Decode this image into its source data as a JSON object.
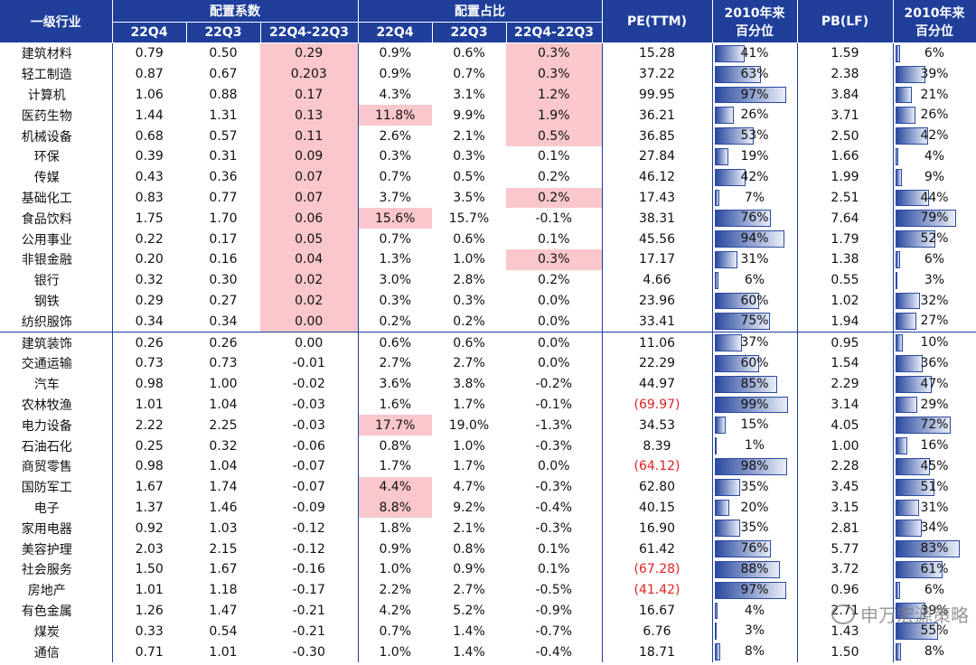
{
  "headers": {
    "industry": "一级行业",
    "group_coef": "配置系数",
    "group_ratio": "配置占比",
    "pe": "PE(TTM)",
    "pct_since_1": "2010年来",
    "pct_since_2": "百分位",
    "pb": "PB(LF)",
    "pct2_since_1": "2010年来",
    "pct2_since_2": "百分位",
    "c_q4": "22Q4",
    "c_q3": "22Q3",
    "c_diff": "22Q4-22Q3",
    "r_q4": "22Q4",
    "r_q3": "22Q3",
    "r_diff": "22Q4-22Q3"
  },
  "rows": [
    {
      "name": "建筑材料",
      "c4": "0.79",
      "c3": "0.50",
      "cd": "0.29",
      "r4": "0.9%",
      "r3": "0.6%",
      "rd": "0.3%",
      "pe": "15.28",
      "pep": "41%",
      "pepv": 0.41,
      "pb": "1.59",
      "pbp": "6%",
      "pbpv": 0.06,
      "hcd": true,
      "hr4": false,
      "hrd": true,
      "pered": false
    },
    {
      "name": "轻工制造",
      "c4": "0.87",
      "c3": "0.67",
      "cd": "0.203",
      "r4": "0.9%",
      "r3": "0.7%",
      "rd": "0.3%",
      "pe": "37.22",
      "pep": "63%",
      "pepv": 0.63,
      "pb": "2.38",
      "pbp": "39%",
      "pbpv": 0.39,
      "hcd": true,
      "hr4": false,
      "hrd": true,
      "pered": false
    },
    {
      "name": "计算机",
      "c4": "1.06",
      "c3": "0.88",
      "cd": "0.17",
      "r4": "4.3%",
      "r3": "3.1%",
      "rd": "1.2%",
      "pe": "99.95",
      "pep": "97%",
      "pepv": 0.97,
      "pb": "3.84",
      "pbp": "21%",
      "pbpv": 0.21,
      "hcd": true,
      "hr4": false,
      "hrd": true,
      "pered": false
    },
    {
      "name": "医药生物",
      "c4": "1.44",
      "c3": "1.31",
      "cd": "0.13",
      "r4": "11.8%",
      "r3": "9.9%",
      "rd": "1.9%",
      "pe": "36.21",
      "pep": "26%",
      "pepv": 0.26,
      "pb": "3.71",
      "pbp": "26%",
      "pbpv": 0.26,
      "hcd": true,
      "hr4": true,
      "hrd": true,
      "pered": false
    },
    {
      "name": "机械设备",
      "c4": "0.68",
      "c3": "0.57",
      "cd": "0.11",
      "r4": "2.6%",
      "r3": "2.1%",
      "rd": "0.5%",
      "pe": "36.85",
      "pep": "53%",
      "pepv": 0.53,
      "pb": "2.50",
      "pbp": "42%",
      "pbpv": 0.42,
      "hcd": true,
      "hr4": false,
      "hrd": true,
      "pered": false
    },
    {
      "name": "环保",
      "c4": "0.39",
      "c3": "0.31",
      "cd": "0.09",
      "r4": "0.3%",
      "r3": "0.3%",
      "rd": "0.1%",
      "pe": "27.84",
      "pep": "19%",
      "pepv": 0.19,
      "pb": "1.66",
      "pbp": "4%",
      "pbpv": 0.04,
      "hcd": true,
      "hr4": false,
      "hrd": false,
      "pered": false
    },
    {
      "name": "传媒",
      "c4": "0.43",
      "c3": "0.36",
      "cd": "0.07",
      "r4": "0.7%",
      "r3": "0.5%",
      "rd": "0.2%",
      "pe": "46.12",
      "pep": "42%",
      "pepv": 0.42,
      "pb": "1.99",
      "pbp": "9%",
      "pbpv": 0.09,
      "hcd": true,
      "hr4": false,
      "hrd": false,
      "pered": false
    },
    {
      "name": "基础化工",
      "c4": "0.83",
      "c3": "0.77",
      "cd": "0.07",
      "r4": "3.7%",
      "r3": "3.5%",
      "rd": "0.2%",
      "pe": "17.43",
      "pep": "7%",
      "pepv": 0.07,
      "pb": "2.51",
      "pbp": "44%",
      "pbpv": 0.44,
      "hcd": true,
      "hr4": false,
      "hrd": true,
      "pered": false
    },
    {
      "name": "食品饮料",
      "c4": "1.75",
      "c3": "1.70",
      "cd": "0.06",
      "r4": "15.6%",
      "r3": "15.7%",
      "rd": "-0.1%",
      "pe": "38.31",
      "pep": "76%",
      "pepv": 0.76,
      "pb": "7.64",
      "pbp": "79%",
      "pbpv": 0.79,
      "hcd": true,
      "hr4": true,
      "hrd": false,
      "pered": false
    },
    {
      "name": "公用事业",
      "c4": "0.22",
      "c3": "0.17",
      "cd": "0.05",
      "r4": "0.7%",
      "r3": "0.6%",
      "rd": "0.1%",
      "pe": "45.56",
      "pep": "94%",
      "pepv": 0.94,
      "pb": "1.79",
      "pbp": "52%",
      "pbpv": 0.52,
      "hcd": true,
      "hr4": false,
      "hrd": false,
      "pered": false
    },
    {
      "name": "非银金融",
      "c4": "0.20",
      "c3": "0.16",
      "cd": "0.04",
      "r4": "1.3%",
      "r3": "1.0%",
      "rd": "0.3%",
      "pe": "17.17",
      "pep": "31%",
      "pepv": 0.31,
      "pb": "1.38",
      "pbp": "6%",
      "pbpv": 0.06,
      "hcd": true,
      "hr4": false,
      "hrd": true,
      "pered": false
    },
    {
      "name": "银行",
      "c4": "0.32",
      "c3": "0.30",
      "cd": "0.02",
      "r4": "3.0%",
      "r3": "2.8%",
      "rd": "0.2%",
      "pe": "4.66",
      "pep": "6%",
      "pepv": 0.06,
      "pb": "0.55",
      "pbp": "3%",
      "pbpv": 0.03,
      "hcd": true,
      "hr4": false,
      "hrd": false,
      "pered": false
    },
    {
      "name": "钢铁",
      "c4": "0.29",
      "c3": "0.27",
      "cd": "0.02",
      "r4": "0.3%",
      "r3": "0.3%",
      "rd": "0.0%",
      "pe": "23.96",
      "pep": "60%",
      "pepv": 0.6,
      "pb": "1.02",
      "pbp": "32%",
      "pbpv": 0.32,
      "hcd": true,
      "hr4": false,
      "hrd": false,
      "pered": false
    },
    {
      "name": "纺织服饰",
      "c4": "0.34",
      "c3": "0.34",
      "cd": "0.00",
      "r4": "0.2%",
      "r3": "0.2%",
      "rd": "0.0%",
      "pe": "33.41",
      "pep": "75%",
      "pepv": 0.75,
      "pb": "1.94",
      "pbp": "27%",
      "pbpv": 0.27,
      "hcd": true,
      "hr4": false,
      "hrd": false,
      "pered": false
    },
    {
      "name": "建筑装饰",
      "c4": "0.26",
      "c3": "0.26",
      "cd": "0.00",
      "r4": "0.6%",
      "r3": "0.6%",
      "rd": "0.0%",
      "pe": "11.06",
      "pep": "37%",
      "pepv": 0.37,
      "pb": "0.95",
      "pbp": "10%",
      "pbpv": 0.1,
      "hcd": false,
      "hr4": false,
      "hrd": false,
      "pered": false,
      "sep": true
    },
    {
      "name": "交通运输",
      "c4": "0.73",
      "c3": "0.73",
      "cd": "-0.01",
      "r4": "2.7%",
      "r3": "2.7%",
      "rd": "0.0%",
      "pe": "22.29",
      "pep": "60%",
      "pepv": 0.6,
      "pb": "1.54",
      "pbp": "36%",
      "pbpv": 0.36,
      "hcd": false,
      "hr4": false,
      "hrd": false,
      "pered": false
    },
    {
      "name": "汽车",
      "c4": "0.98",
      "c3": "1.00",
      "cd": "-0.02",
      "r4": "3.6%",
      "r3": "3.8%",
      "rd": "-0.2%",
      "pe": "44.97",
      "pep": "85%",
      "pepv": 0.85,
      "pb": "2.29",
      "pbp": "47%",
      "pbpv": 0.47,
      "hcd": false,
      "hr4": false,
      "hrd": false,
      "pered": false
    },
    {
      "name": "农林牧渔",
      "c4": "1.01",
      "c3": "1.04",
      "cd": "-0.03",
      "r4": "1.6%",
      "r3": "1.7%",
      "rd": "-0.1%",
      "pe": "(69.97)",
      "pep": "99%",
      "pepv": 0.99,
      "pb": "3.14",
      "pbp": "29%",
      "pbpv": 0.29,
      "hcd": false,
      "hr4": false,
      "hrd": false,
      "pered": true
    },
    {
      "name": "电力设备",
      "c4": "2.22",
      "c3": "2.25",
      "cd": "-0.03",
      "r4": "17.7%",
      "r3": "19.0%",
      "rd": "-1.3%",
      "pe": "34.53",
      "pep": "15%",
      "pepv": 0.15,
      "pb": "4.05",
      "pbp": "72%",
      "pbpv": 0.72,
      "hcd": false,
      "hr4": true,
      "hrd": false,
      "pered": false
    },
    {
      "name": "石油石化",
      "c4": "0.25",
      "c3": "0.32",
      "cd": "-0.06",
      "r4": "0.8%",
      "r3": "1.0%",
      "rd": "-0.3%",
      "pe": "8.39",
      "pep": "1%",
      "pepv": 0.01,
      "pb": "1.00",
      "pbp": "16%",
      "pbpv": 0.16,
      "hcd": false,
      "hr4": false,
      "hrd": false,
      "pered": false
    },
    {
      "name": "商贸零售",
      "c4": "0.98",
      "c3": "1.04",
      "cd": "-0.07",
      "r4": "1.7%",
      "r3": "1.7%",
      "rd": "0.0%",
      "pe": "(64.12)",
      "pep": "98%",
      "pepv": 0.98,
      "pb": "2.28",
      "pbp": "45%",
      "pbpv": 0.45,
      "hcd": false,
      "hr4": false,
      "hrd": false,
      "pered": true
    },
    {
      "name": "国防军工",
      "c4": "1.67",
      "c3": "1.74",
      "cd": "-0.07",
      "r4": "4.4%",
      "r3": "4.7%",
      "rd": "-0.3%",
      "pe": "62.80",
      "pep": "35%",
      "pepv": 0.35,
      "pb": "3.45",
      "pbp": "51%",
      "pbpv": 0.51,
      "hcd": false,
      "hr4": true,
      "hrd": false,
      "pered": false
    },
    {
      "name": "电子",
      "c4": "1.37",
      "c3": "1.46",
      "cd": "-0.09",
      "r4": "8.8%",
      "r3": "9.2%",
      "rd": "-0.4%",
      "pe": "40.15",
      "pep": "20%",
      "pepv": 0.2,
      "pb": "3.15",
      "pbp": "31%",
      "pbpv": 0.31,
      "hcd": false,
      "hr4": true,
      "hrd": false,
      "pered": false
    },
    {
      "name": "家用电器",
      "c4": "0.92",
      "c3": "1.03",
      "cd": "-0.12",
      "r4": "1.8%",
      "r3": "2.1%",
      "rd": "-0.3%",
      "pe": "16.90",
      "pep": "35%",
      "pepv": 0.35,
      "pb": "2.81",
      "pbp": "34%",
      "pbpv": 0.34,
      "hcd": false,
      "hr4": false,
      "hrd": false,
      "pered": false
    },
    {
      "name": "美容护理",
      "c4": "2.03",
      "c3": "2.15",
      "cd": "-0.12",
      "r4": "0.9%",
      "r3": "0.8%",
      "rd": "0.1%",
      "pe": "61.42",
      "pep": "76%",
      "pepv": 0.76,
      "pb": "5.77",
      "pbp": "83%",
      "pbpv": 0.83,
      "hcd": false,
      "hr4": false,
      "hrd": false,
      "pered": false
    },
    {
      "name": "社会服务",
      "c4": "1.50",
      "c3": "1.67",
      "cd": "-0.16",
      "r4": "1.0%",
      "r3": "0.9%",
      "rd": "0.1%",
      "pe": "(67.28)",
      "pep": "88%",
      "pepv": 0.88,
      "pb": "3.72",
      "pbp": "61%",
      "pbpv": 0.61,
      "hcd": false,
      "hr4": false,
      "hrd": false,
      "pered": true
    },
    {
      "name": "房地产",
      "c4": "1.01",
      "c3": "1.18",
      "cd": "-0.17",
      "r4": "2.2%",
      "r3": "2.7%",
      "rd": "-0.5%",
      "pe": "(41.42)",
      "pep": "97%",
      "pepv": 0.97,
      "pb": "0.96",
      "pbp": "6%",
      "pbpv": 0.06,
      "hcd": false,
      "hr4": false,
      "hrd": false,
      "pered": true
    },
    {
      "name": "有色金属",
      "c4": "1.26",
      "c3": "1.47",
      "cd": "-0.21",
      "r4": "4.2%",
      "r3": "5.2%",
      "rd": "-0.9%",
      "pe": "16.67",
      "pep": "4%",
      "pepv": 0.04,
      "pb": "2.71",
      "pbp": "39%",
      "pbpv": 0.39,
      "hcd": false,
      "hr4": false,
      "hrd": false,
      "pered": false
    },
    {
      "name": "煤炭",
      "c4": "0.33",
      "c3": "0.54",
      "cd": "-0.21",
      "r4": "0.7%",
      "r3": "1.4%",
      "rd": "-0.7%",
      "pe": "6.76",
      "pep": "3%",
      "pepv": 0.03,
      "pb": "1.43",
      "pbp": "55%",
      "pbpv": 0.55,
      "hcd": false,
      "hr4": false,
      "hrd": false,
      "pered": false
    },
    {
      "name": "通信",
      "c4": "0.71",
      "c3": "1.01",
      "cd": "-0.30",
      "r4": "1.0%",
      "r3": "1.4%",
      "rd": "-0.4%",
      "pe": "18.71",
      "pep": "8%",
      "pepv": 0.08,
      "pb": "1.50",
      "pbp": "8%",
      "pbpv": 0.08,
      "hcd": false,
      "hr4": false,
      "hrd": false,
      "pered": false
    }
  ],
  "watermark": "申万宏源策略",
  "colors": {
    "header": "#1f3f9a",
    "highlight": "#f9c7cc",
    "negative": "#e02020"
  }
}
